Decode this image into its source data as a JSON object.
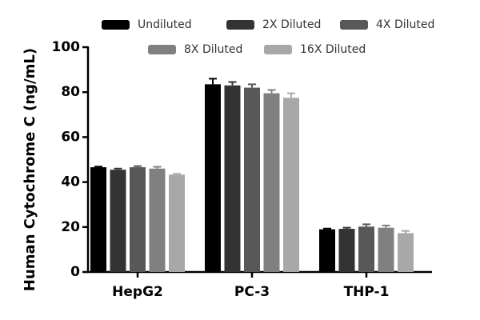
{
  "chart_data": {
    "type": "bar",
    "y_label": "Human Cytochrome C (ng/mL)",
    "categories": [
      "HepG2",
      "PC-3",
      "THP-1"
    ],
    "series": [
      {
        "name": "Undiluted",
        "color": "#000000",
        "values": [
          46.6,
          83.5,
          19.0
        ],
        "errors": [
          0.3,
          2.5,
          0.3
        ]
      },
      {
        "name": "2X Diluted",
        "color": "#333333",
        "values": [
          45.5,
          83.0,
          19.2
        ],
        "errors": [
          0.5,
          1.5,
          0.5
        ]
      },
      {
        "name": "4X Diluted",
        "color": "#585858",
        "values": [
          46.6,
          82.0,
          20.2
        ],
        "errors": [
          0.5,
          1.5,
          1.0
        ]
      },
      {
        "name": "8X Diluted",
        "color": "#808080",
        "values": [
          46.0,
          79.5,
          19.7
        ],
        "errors": [
          0.8,
          1.5,
          1.0
        ]
      },
      {
        "name": "16X Diluted",
        "color": "#a8a8a8",
        "values": [
          43.3,
          77.5,
          17.3
        ],
        "errors": [
          0.4,
          2.0,
          1.0
        ]
      }
    ],
    "ylim": [
      0,
      100
    ],
    "yticks": [
      0,
      20,
      40,
      60,
      80,
      100
    ],
    "grid": false
  }
}
